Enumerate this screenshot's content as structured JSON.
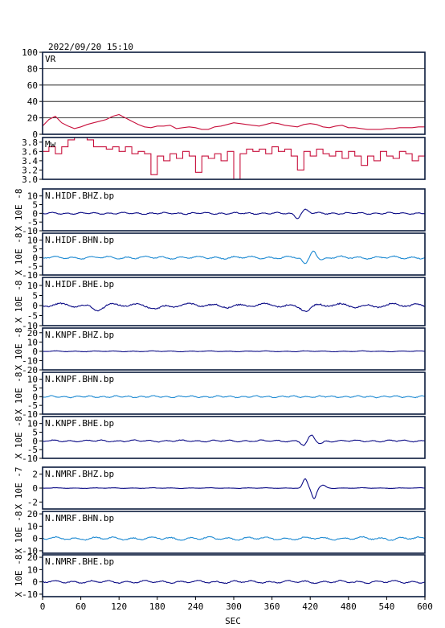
{
  "header": {
    "datetime": "2022/09/20  15:10"
  },
  "xaxis": {
    "label": "SEC",
    "min": 0,
    "max": 600,
    "ticks": [
      0,
      60,
      120,
      180,
      240,
      300,
      360,
      420,
      480,
      540,
      600
    ]
  },
  "colors": {
    "red": "#c8103c",
    "navy": "#0b0b86",
    "blue": "#1e8ad2"
  },
  "chart_data": [
    {
      "type": "line",
      "label": "VR",
      "ylim": [
        0,
        100
      ],
      "yticks": [
        0,
        20,
        40,
        60,
        80,
        100
      ],
      "grid": true,
      "color": "#c8103c",
      "x": [
        0,
        10,
        20,
        30,
        40,
        50,
        60,
        70,
        80,
        90,
        100,
        110,
        120,
        130,
        140,
        150,
        160,
        170,
        180,
        190,
        200,
        210,
        220,
        230,
        240,
        250,
        260,
        270,
        280,
        290,
        300,
        310,
        320,
        330,
        340,
        350,
        360,
        370,
        380,
        390,
        400,
        410,
        420,
        430,
        440,
        450,
        460,
        470,
        480,
        490,
        500,
        510,
        520,
        530,
        540,
        550,
        560,
        570,
        580,
        590,
        600
      ],
      "values": [
        10,
        18,
        22,
        14,
        10,
        7,
        9,
        12,
        14,
        16,
        18,
        22,
        24,
        20,
        16,
        12,
        9,
        8,
        10,
        10,
        11,
        7,
        8,
        9,
        8,
        6,
        6,
        9,
        10,
        12,
        14,
        13,
        12,
        11,
        10,
        12,
        14,
        13,
        11,
        10,
        9,
        12,
        13,
        12,
        9,
        8,
        10,
        11,
        8,
        8,
        7,
        6,
        6,
        6,
        7,
        7,
        8,
        8,
        8,
        9,
        9
      ]
    },
    {
      "type": "line",
      "label": "Mw",
      "ylim": [
        3.0,
        3.9
      ],
      "yticks": [
        3.0,
        3.2,
        3.4,
        3.6,
        3.8
      ],
      "grid": false,
      "color": "#c8103c",
      "x": [
        0,
        10,
        20,
        30,
        40,
        50,
        60,
        70,
        80,
        90,
        100,
        110,
        120,
        130,
        140,
        150,
        160,
        170,
        180,
        190,
        200,
        210,
        220,
        230,
        240,
        250,
        260,
        270,
        280,
        290,
        300,
        310,
        320,
        330,
        340,
        350,
        360,
        370,
        380,
        390,
        400,
        410,
        420,
        430,
        440,
        450,
        460,
        470,
        480,
        490,
        500,
        510,
        520,
        530,
        540,
        550,
        560,
        570,
        580,
        590,
        600
      ],
      "values": [
        3.6,
        3.7,
        3.55,
        3.7,
        3.85,
        3.9,
        3.9,
        3.85,
        3.7,
        3.7,
        3.65,
        3.7,
        3.6,
        3.7,
        3.55,
        3.6,
        3.55,
        3.1,
        3.5,
        3.4,
        3.55,
        3.45,
        3.6,
        3.5,
        3.15,
        3.5,
        3.45,
        3.55,
        3.4,
        3.6,
        3.0,
        3.55,
        3.65,
        3.6,
        3.65,
        3.55,
        3.7,
        3.6,
        3.65,
        3.5,
        3.2,
        3.6,
        3.5,
        3.65,
        3.55,
        3.5,
        3.6,
        3.45,
        3.6,
        3.5,
        3.3,
        3.5,
        3.4,
        3.6,
        3.5,
        3.45,
        3.6,
        3.55,
        3.4,
        3.5,
        3.6
      ]
    },
    {
      "type": "line",
      "label": "N.HIDF.BHZ.bp",
      "unit": "X 10E -8",
      "ylim": [
        -10,
        14
      ],
      "yticks": [
        -10,
        -5,
        0,
        5,
        10
      ],
      "color": "#0b0b86",
      "noise": 0.6,
      "period": 22,
      "events": [
        {
          "t": 400,
          "a": -2.5,
          "w": 6
        },
        {
          "t": 412,
          "a": 2.0,
          "w": 7
        }
      ]
    },
    {
      "type": "line",
      "label": "N.HIDF.BHN.bp",
      "unit": "X 10E -8",
      "ylim": [
        -10,
        14
      ],
      "yticks": [
        -10,
        -5,
        0,
        5,
        10
      ],
      "color": "#1e8ad2",
      "noise": 0.9,
      "period": 28,
      "events": [
        {
          "t": 412,
          "a": -4.0,
          "w": 6
        },
        {
          "t": 425,
          "a": 4.5,
          "w": 6
        },
        {
          "t": 438,
          "a": -1.5,
          "w": 6
        }
      ]
    },
    {
      "type": "line",
      "label": "N.HIDF.BHE.bp",
      "unit": "X 10E -8",
      "ylim": [
        -10,
        14
      ],
      "yticks": [
        -10,
        -5,
        0,
        5,
        10
      ],
      "color": "#0b0b86",
      "noise": 1.2,
      "period": 40,
      "events": [
        {
          "t": 85,
          "a": -1.5,
          "w": 10
        },
        {
          "t": 180,
          "a": -1.2,
          "w": 10
        },
        {
          "t": 415,
          "a": -2.0,
          "w": 10
        }
      ]
    },
    {
      "type": "line",
      "label": "N.KNPF.BHZ.bp",
      "unit": "X 10E -8",
      "ylim": [
        -20,
        25
      ],
      "yticks": [
        -20,
        -10,
        0,
        10,
        20
      ],
      "color": "#0b0b86",
      "noise": 0.5,
      "period": 30,
      "events": []
    },
    {
      "type": "line",
      "label": "N.KNPF.BHN.bp",
      "unit": "X 10E -8",
      "ylim": [
        -10,
        14
      ],
      "yticks": [
        -10,
        -5,
        0,
        5,
        10
      ],
      "color": "#1e8ad2",
      "noise": 0.6,
      "period": 20,
      "events": []
    },
    {
      "type": "line",
      "label": "N.KNPF.BHE.bp",
      "unit": "X 10E -8",
      "ylim": [
        -10,
        14
      ],
      "yticks": [
        -10,
        -5,
        0,
        5,
        10
      ],
      "color": "#0b0b86",
      "noise": 0.6,
      "period": 25,
      "events": [
        {
          "t": 410,
          "a": -2.5,
          "w": 6
        },
        {
          "t": 422,
          "a": 3.0,
          "w": 6
        },
        {
          "t": 436,
          "a": -1.5,
          "w": 6
        }
      ]
    },
    {
      "type": "line",
      "label": "N.NMRF.BHZ.bp",
      "unit": "X 10E -7",
      "ylim": [
        -3,
        3
      ],
      "yticks": [
        -2,
        0,
        2
      ],
      "color": "#0b0b86",
      "noise": 0.05,
      "period": 30,
      "events": [
        {
          "t": 412,
          "a": 1.3,
          "w": 5
        },
        {
          "t": 426,
          "a": -1.5,
          "w": 5
        },
        {
          "t": 440,
          "a": 0.4,
          "w": 6
        }
      ]
    },
    {
      "type": "line",
      "label": "N.NMRF.BHN.bp",
      "unit": "X 10E -8",
      "ylim": [
        -12,
        22
      ],
      "yticks": [
        -10,
        0,
        10,
        20
      ],
      "color": "#1e8ad2",
      "noise": 1.4,
      "period": 30,
      "events": []
    },
    {
      "type": "line",
      "label": "N.NMRF.BHE.bp",
      "unit": "X 10E -8",
      "ylim": [
        -12,
        22
      ],
      "yticks": [
        -10,
        0,
        10,
        20
      ],
      "color": "#0b0b86",
      "noise": 1.2,
      "period": 28,
      "events": []
    }
  ]
}
